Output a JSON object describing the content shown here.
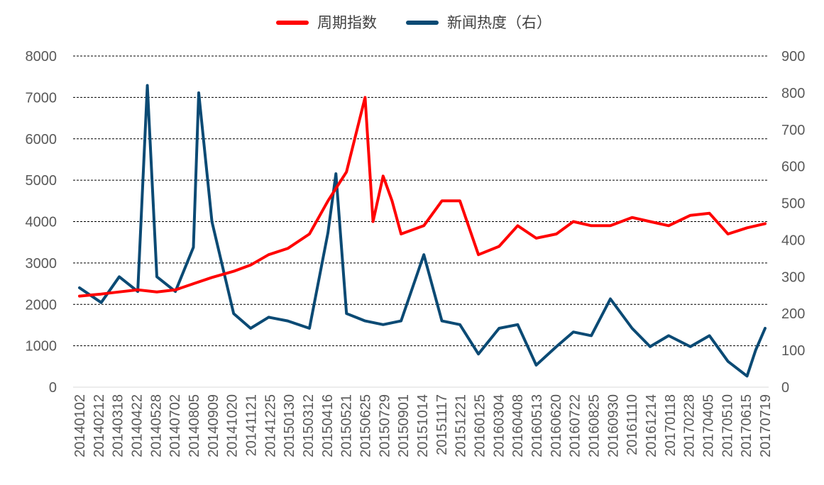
{
  "chart_data": {
    "type": "line",
    "title": "",
    "legend": {
      "position": "top",
      "entries": [
        {
          "name": "周期指数",
          "color": "#ff0000"
        },
        {
          "name": "新闻热度（右）",
          "color": "#0b4a74"
        }
      ]
    },
    "x_ticks": [
      "20140102",
      "20140212",
      "20140318",
      "20140422",
      "20140528",
      "20140702",
      "20140805",
      "20140909",
      "20141020",
      "20141121",
      "20141225",
      "20150130",
      "20150312",
      "20150416",
      "20150521",
      "20150625",
      "20150729",
      "20150901",
      "20151014",
      "20151117",
      "20151221",
      "20160125",
      "20160304",
      "20160408",
      "20160513",
      "20160620",
      "20160722",
      "20160825",
      "20160930",
      "20161110",
      "20161214",
      "20170118",
      "20170228",
      "20170405",
      "20170510",
      "20170615",
      "20170719"
    ],
    "y_left": {
      "min": 0,
      "max": 8000,
      "ticks": [
        0,
        1000,
        2000,
        3000,
        4000,
        5000,
        6000,
        7000,
        8000
      ]
    },
    "y_right": {
      "min": 0,
      "max": 900,
      "ticks": [
        0,
        100,
        200,
        300,
        400,
        500,
        600,
        700,
        800,
        900
      ]
    },
    "grid": "horizontal-dashed",
    "series": [
      {
        "name": "周期指数",
        "axis": "left",
        "color": "#ff0000",
        "points": [
          [
            "20140102",
            2200
          ],
          [
            "20140212",
            2250
          ],
          [
            "20140318",
            2300
          ],
          [
            "20140422",
            2350
          ],
          [
            "20140528",
            2300
          ],
          [
            "20140702",
            2350
          ],
          [
            "20140805",
            2500
          ],
          [
            "20140909",
            2650
          ],
          [
            "20141020",
            2800
          ],
          [
            "20141121",
            2950
          ],
          [
            "20141225",
            3200
          ],
          [
            "20150130",
            3350
          ],
          [
            "20150312",
            3700
          ],
          [
            "20150416",
            4500
          ],
          [
            "20150521",
            5200
          ],
          [
            "20150625",
            7000
          ],
          [
            "20150710",
            4000
          ],
          [
            "20150729",
            5100
          ],
          [
            "20150815",
            4500
          ],
          [
            "20150901",
            3700
          ],
          [
            "20151014",
            3900
          ],
          [
            "20151117",
            4500
          ],
          [
            "20151221",
            4500
          ],
          [
            "20160125",
            3200
          ],
          [
            "20160304",
            3400
          ],
          [
            "20160408",
            3900
          ],
          [
            "20160513",
            3600
          ],
          [
            "20160620",
            3700
          ],
          [
            "20160722",
            4000
          ],
          [
            "20160825",
            3900
          ],
          [
            "20160930",
            3900
          ],
          [
            "20161110",
            4100
          ],
          [
            "20161214",
            4000
          ],
          [
            "20170118",
            3900
          ],
          [
            "20170228",
            4150
          ],
          [
            "20170405",
            4200
          ],
          [
            "20170510",
            3700
          ],
          [
            "20170615",
            3850
          ],
          [
            "20170719",
            3950
          ]
        ]
      },
      {
        "name": "新闻热度（右）",
        "axis": "right",
        "color": "#0b4a74",
        "points": [
          [
            "20140102",
            270
          ],
          [
            "20140212",
            230
          ],
          [
            "20140318",
            300
          ],
          [
            "20140422",
            260
          ],
          [
            "20140510",
            820
          ],
          [
            "20140528",
            300
          ],
          [
            "20140702",
            260
          ],
          [
            "20140805",
            380
          ],
          [
            "20140815",
            800
          ],
          [
            "20140909",
            450
          ],
          [
            "20141020",
            200
          ],
          [
            "20141121",
            160
          ],
          [
            "20141225",
            190
          ],
          [
            "20150130",
            180
          ],
          [
            "20150312",
            160
          ],
          [
            "20150416",
            420
          ],
          [
            "20150501",
            580
          ],
          [
            "20150521",
            200
          ],
          [
            "20150625",
            180
          ],
          [
            "20150729",
            170
          ],
          [
            "20150901",
            180
          ],
          [
            "20151014",
            360
          ],
          [
            "20151117",
            180
          ],
          [
            "20151221",
            170
          ],
          [
            "20160125",
            90
          ],
          [
            "20160304",
            160
          ],
          [
            "20160408",
            170
          ],
          [
            "20160513",
            60
          ],
          [
            "20160620",
            110
          ],
          [
            "20160722",
            150
          ],
          [
            "20160825",
            140
          ],
          [
            "20160930",
            240
          ],
          [
            "20161110",
            160
          ],
          [
            "20161214",
            110
          ],
          [
            "20170118",
            140
          ],
          [
            "20170228",
            110
          ],
          [
            "20170405",
            140
          ],
          [
            "20170510",
            70
          ],
          [
            "20170615",
            30
          ],
          [
            "20170701",
            100
          ],
          [
            "20170719",
            160
          ]
        ]
      }
    ]
  }
}
